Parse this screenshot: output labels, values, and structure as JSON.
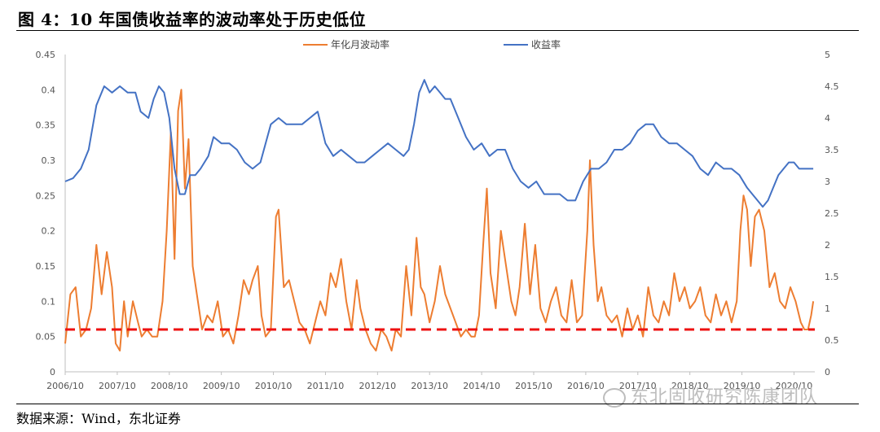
{
  "title": "图 4：10 年国债收益率的波动率处于历史低位",
  "source": "数据来源：Wind，东北证券",
  "watermark": "东北固收研究陈康团队",
  "chart_data": {
    "type": "line",
    "x_tick_labels": [
      "2006/10",
      "2007/10",
      "2008/10",
      "2009/10",
      "2010/10",
      "2011/10",
      "2012/10",
      "2013/10",
      "2014/10",
      "2015/10",
      "2016/10",
      "2017/10",
      "2018/10",
      "2019/10",
      "2020/10"
    ],
    "y_left_ticks": [
      "0",
      "0.05",
      "0.1",
      "0.15",
      "0.2",
      "0.25",
      "0.3",
      "0.35",
      "0.4",
      "0.45"
    ],
    "y_right_ticks": [
      "0",
      "0.5",
      "1",
      "1.5",
      "2",
      "2.5",
      "3",
      "3.5",
      "4",
      "4.5",
      "5"
    ],
    "ylim_left": [
      0,
      0.45
    ],
    "ylim_right": [
      0,
      5
    ],
    "xlim": [
      2006.75,
      2021.15
    ],
    "threshold": {
      "value": 0.06,
      "color": "#ee1111",
      "style": "dashed"
    },
    "legend_position": "top",
    "grid": false,
    "series": [
      {
        "name": "年化月波动率",
        "axis": "left",
        "color": "#ed7d31",
        "points": [
          [
            2006.75,
            0.04
          ],
          [
            2006.85,
            0.11
          ],
          [
            2006.95,
            0.12
          ],
          [
            2007.05,
            0.05
          ],
          [
            2007.15,
            0.06
          ],
          [
            2007.25,
            0.09
          ],
          [
            2007.35,
            0.18
          ],
          [
            2007.45,
            0.11
          ],
          [
            2007.55,
            0.17
          ],
          [
            2007.65,
            0.12
          ],
          [
            2007.72,
            0.04
          ],
          [
            2007.8,
            0.03
          ],
          [
            2007.88,
            0.1
          ],
          [
            2007.95,
            0.05
          ],
          [
            2008.05,
            0.1
          ],
          [
            2008.15,
            0.07
          ],
          [
            2008.22,
            0.05
          ],
          [
            2008.32,
            0.06
          ],
          [
            2008.42,
            0.05
          ],
          [
            2008.52,
            0.05
          ],
          [
            2008.62,
            0.1
          ],
          [
            2008.7,
            0.2
          ],
          [
            2008.78,
            0.34
          ],
          [
            2008.85,
            0.16
          ],
          [
            2008.92,
            0.37
          ],
          [
            2008.98,
            0.4
          ],
          [
            2009.05,
            0.26
          ],
          [
            2009.12,
            0.33
          ],
          [
            2009.2,
            0.15
          ],
          [
            2009.28,
            0.11
          ],
          [
            2009.38,
            0.06
          ],
          [
            2009.48,
            0.08
          ],
          [
            2009.58,
            0.07
          ],
          [
            2009.68,
            0.1
          ],
          [
            2009.78,
            0.05
          ],
          [
            2009.88,
            0.06
          ],
          [
            2009.98,
            0.04
          ],
          [
            2010.08,
            0.08
          ],
          [
            2010.18,
            0.13
          ],
          [
            2010.28,
            0.11
          ],
          [
            2010.35,
            0.13
          ],
          [
            2010.45,
            0.15
          ],
          [
            2010.52,
            0.08
          ],
          [
            2010.6,
            0.05
          ],
          [
            2010.7,
            0.06
          ],
          [
            2010.8,
            0.22
          ],
          [
            2010.85,
            0.23
          ],
          [
            2010.95,
            0.12
          ],
          [
            2011.05,
            0.13
          ],
          [
            2011.15,
            0.1
          ],
          [
            2011.25,
            0.07
          ],
          [
            2011.35,
            0.06
          ],
          [
            2011.45,
            0.04
          ],
          [
            2011.55,
            0.07
          ],
          [
            2011.65,
            0.1
          ],
          [
            2011.75,
            0.08
          ],
          [
            2011.85,
            0.14
          ],
          [
            2011.95,
            0.12
          ],
          [
            2012.05,
            0.16
          ],
          [
            2012.15,
            0.1
          ],
          [
            2012.25,
            0.06
          ],
          [
            2012.35,
            0.13
          ],
          [
            2012.42,
            0.09
          ],
          [
            2012.52,
            0.06
          ],
          [
            2012.62,
            0.04
          ],
          [
            2012.72,
            0.03
          ],
          [
            2012.82,
            0.06
          ],
          [
            2012.92,
            0.05
          ],
          [
            2013.02,
            0.03
          ],
          [
            2013.1,
            0.06
          ],
          [
            2013.2,
            0.05
          ],
          [
            2013.3,
            0.15
          ],
          [
            2013.4,
            0.08
          ],
          [
            2013.5,
            0.19
          ],
          [
            2013.58,
            0.12
          ],
          [
            2013.65,
            0.11
          ],
          [
            2013.75,
            0.07
          ],
          [
            2013.85,
            0.1
          ],
          [
            2013.95,
            0.15
          ],
          [
            2014.05,
            0.11
          ],
          [
            2014.15,
            0.09
          ],
          [
            2014.25,
            0.07
          ],
          [
            2014.35,
            0.05
          ],
          [
            2014.45,
            0.06
          ],
          [
            2014.55,
            0.05
          ],
          [
            2014.62,
            0.05
          ],
          [
            2014.7,
            0.08
          ],
          [
            2014.78,
            0.18
          ],
          [
            2014.85,
            0.26
          ],
          [
            2014.92,
            0.14
          ],
          [
            2015.02,
            0.09
          ],
          [
            2015.12,
            0.2
          ],
          [
            2015.22,
            0.15
          ],
          [
            2015.32,
            0.1
          ],
          [
            2015.4,
            0.08
          ],
          [
            2015.48,
            0.12
          ],
          [
            2015.58,
            0.21
          ],
          [
            2015.68,
            0.11
          ],
          [
            2015.78,
            0.18
          ],
          [
            2015.88,
            0.09
          ],
          [
            2015.98,
            0.07
          ],
          [
            2016.08,
            0.1
          ],
          [
            2016.18,
            0.12
          ],
          [
            2016.28,
            0.08
          ],
          [
            2016.38,
            0.07
          ],
          [
            2016.48,
            0.13
          ],
          [
            2016.58,
            0.07
          ],
          [
            2016.68,
            0.08
          ],
          [
            2016.78,
            0.2
          ],
          [
            2016.83,
            0.3
          ],
          [
            2016.9,
            0.18
          ],
          [
            2016.98,
            0.1
          ],
          [
            2017.05,
            0.12
          ],
          [
            2017.15,
            0.08
          ],
          [
            2017.25,
            0.07
          ],
          [
            2017.35,
            0.08
          ],
          [
            2017.45,
            0.05
          ],
          [
            2017.55,
            0.09
          ],
          [
            2017.65,
            0.06
          ],
          [
            2017.75,
            0.08
          ],
          [
            2017.85,
            0.05
          ],
          [
            2017.95,
            0.12
          ],
          [
            2018.05,
            0.08
          ],
          [
            2018.15,
            0.07
          ],
          [
            2018.25,
            0.1
          ],
          [
            2018.35,
            0.08
          ],
          [
            2018.45,
            0.14
          ],
          [
            2018.55,
            0.1
          ],
          [
            2018.65,
            0.12
          ],
          [
            2018.75,
            0.09
          ],
          [
            2018.85,
            0.1
          ],
          [
            2018.95,
            0.12
          ],
          [
            2019.05,
            0.08
          ],
          [
            2019.15,
            0.07
          ],
          [
            2019.25,
            0.11
          ],
          [
            2019.35,
            0.08
          ],
          [
            2019.45,
            0.1
          ],
          [
            2019.55,
            0.07
          ],
          [
            2019.65,
            0.1
          ],
          [
            2019.72,
            0.2
          ],
          [
            2019.78,
            0.25
          ],
          [
            2019.85,
            0.23
          ],
          [
            2019.92,
            0.15
          ],
          [
            2020.0,
            0.22
          ],
          [
            2020.08,
            0.23
          ],
          [
            2020.18,
            0.2
          ],
          [
            2020.28,
            0.12
          ],
          [
            2020.38,
            0.14
          ],
          [
            2020.48,
            0.1
          ],
          [
            2020.58,
            0.09
          ],
          [
            2020.68,
            0.12
          ],
          [
            2020.78,
            0.1
          ],
          [
            2020.88,
            0.07
          ],
          [
            2020.95,
            0.06
          ],
          [
            2021.02,
            0.06
          ],
          [
            2021.08,
            0.08
          ],
          [
            2021.12,
            0.1
          ]
        ]
      },
      {
        "name": "收益率",
        "axis": "right",
        "color": "#4472c4",
        "points": [
          [
            2006.75,
            3.0
          ],
          [
            2006.9,
            3.05
          ],
          [
            2007.05,
            3.2
          ],
          [
            2007.2,
            3.5
          ],
          [
            2007.35,
            4.2
          ],
          [
            2007.5,
            4.5
          ],
          [
            2007.65,
            4.4
          ],
          [
            2007.8,
            4.5
          ],
          [
            2007.95,
            4.4
          ],
          [
            2008.1,
            4.4
          ],
          [
            2008.2,
            4.1
          ],
          [
            2008.35,
            4.0
          ],
          [
            2008.45,
            4.3
          ],
          [
            2008.55,
            4.5
          ],
          [
            2008.65,
            4.4
          ],
          [
            2008.75,
            4.0
          ],
          [
            2008.85,
            3.2
          ],
          [
            2008.95,
            2.8
          ],
          [
            2009.05,
            2.8
          ],
          [
            2009.15,
            3.1
          ],
          [
            2009.25,
            3.1
          ],
          [
            2009.35,
            3.2
          ],
          [
            2009.5,
            3.4
          ],
          [
            2009.6,
            3.7
          ],
          [
            2009.75,
            3.6
          ],
          [
            2009.9,
            3.6
          ],
          [
            2010.05,
            3.5
          ],
          [
            2010.2,
            3.3
          ],
          [
            2010.35,
            3.2
          ],
          [
            2010.5,
            3.3
          ],
          [
            2010.6,
            3.6
          ],
          [
            2010.7,
            3.9
          ],
          [
            2010.85,
            4.0
          ],
          [
            2011.0,
            3.9
          ],
          [
            2011.15,
            3.9
          ],
          [
            2011.3,
            3.9
          ],
          [
            2011.45,
            4.0
          ],
          [
            2011.6,
            4.1
          ],
          [
            2011.75,
            3.6
          ],
          [
            2011.9,
            3.4
          ],
          [
            2012.05,
            3.5
          ],
          [
            2012.2,
            3.4
          ],
          [
            2012.35,
            3.3
          ],
          [
            2012.5,
            3.3
          ],
          [
            2012.65,
            3.4
          ],
          [
            2012.8,
            3.5
          ],
          [
            2012.95,
            3.6
          ],
          [
            2013.1,
            3.5
          ],
          [
            2013.25,
            3.4
          ],
          [
            2013.35,
            3.5
          ],
          [
            2013.45,
            3.9
          ],
          [
            2013.55,
            4.4
          ],
          [
            2013.65,
            4.6
          ],
          [
            2013.75,
            4.4
          ],
          [
            2013.85,
            4.5
          ],
          [
            2013.95,
            4.4
          ],
          [
            2014.05,
            4.3
          ],
          [
            2014.15,
            4.3
          ],
          [
            2014.3,
            4.0
          ],
          [
            2014.45,
            3.7
          ],
          [
            2014.6,
            3.5
          ],
          [
            2014.75,
            3.6
          ],
          [
            2014.9,
            3.4
          ],
          [
            2015.05,
            3.5
          ],
          [
            2015.2,
            3.5
          ],
          [
            2015.35,
            3.2
          ],
          [
            2015.5,
            3.0
          ],
          [
            2015.65,
            2.9
          ],
          [
            2015.8,
            3.0
          ],
          [
            2015.95,
            2.8
          ],
          [
            2016.1,
            2.8
          ],
          [
            2016.25,
            2.8
          ],
          [
            2016.4,
            2.7
          ],
          [
            2016.55,
            2.7
          ],
          [
            2016.7,
            3.0
          ],
          [
            2016.85,
            3.2
          ],
          [
            2017.0,
            3.2
          ],
          [
            2017.15,
            3.3
          ],
          [
            2017.3,
            3.5
          ],
          [
            2017.45,
            3.5
          ],
          [
            2017.6,
            3.6
          ],
          [
            2017.75,
            3.8
          ],
          [
            2017.9,
            3.9
          ],
          [
            2018.05,
            3.9
          ],
          [
            2018.2,
            3.7
          ],
          [
            2018.35,
            3.6
          ],
          [
            2018.5,
            3.6
          ],
          [
            2018.65,
            3.5
          ],
          [
            2018.8,
            3.4
          ],
          [
            2018.95,
            3.2
          ],
          [
            2019.1,
            3.1
          ],
          [
            2019.25,
            3.3
          ],
          [
            2019.4,
            3.2
          ],
          [
            2019.55,
            3.2
          ],
          [
            2019.7,
            3.1
          ],
          [
            2019.85,
            2.9
          ],
          [
            2019.95,
            2.8
          ],
          [
            2020.05,
            2.7
          ],
          [
            2020.15,
            2.6
          ],
          [
            2020.25,
            2.7
          ],
          [
            2020.35,
            2.9
          ],
          [
            2020.45,
            3.1
          ],
          [
            2020.55,
            3.2
          ],
          [
            2020.65,
            3.3
          ],
          [
            2020.75,
            3.3
          ],
          [
            2020.85,
            3.2
          ],
          [
            2020.95,
            3.2
          ],
          [
            2021.05,
            3.2
          ],
          [
            2021.12,
            3.2
          ]
        ]
      }
    ]
  }
}
